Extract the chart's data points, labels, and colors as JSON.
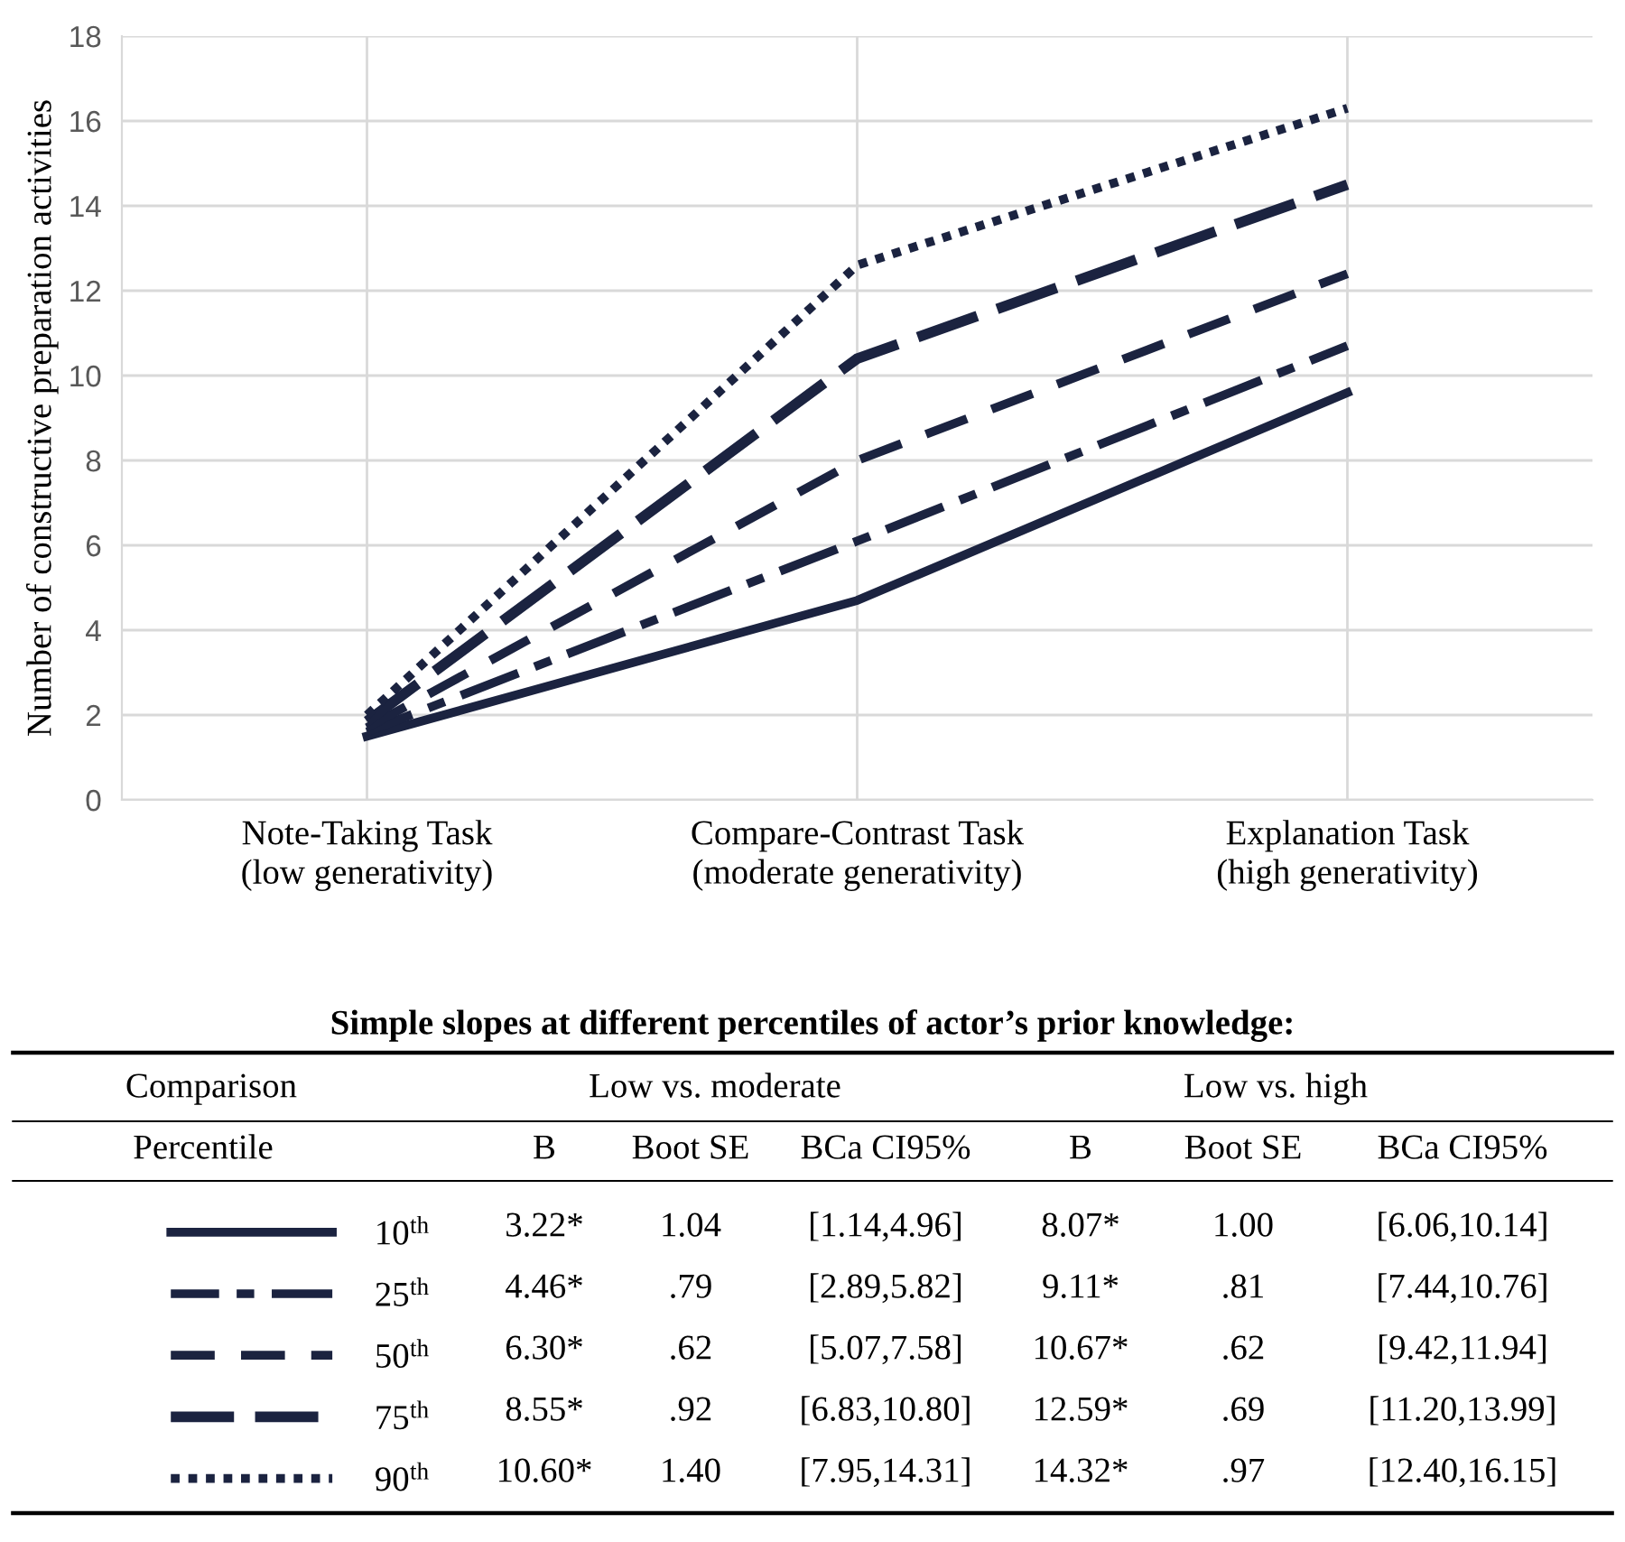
{
  "chart_data": {
    "type": "line",
    "ylabel": "Number of constructive preparation activities",
    "categories": [
      "Note-Taking Task\n(low generativity)",
      "Compare-Contrast Task\n(moderate generativity)",
      "Explanation Task\n(high generativity)"
    ],
    "ylim": [
      0,
      18
    ],
    "yticks": [
      0,
      2,
      4,
      6,
      8,
      10,
      12,
      14,
      16,
      18
    ],
    "grid": true,
    "legend": "bottom",
    "marker": "none",
    "series": [
      {
        "name": "10$^{th}$",
        "color": "#1b2340",
        "line_style": "solid",
        "values": [
          1.5,
          4.7,
          9.6
        ]
      },
      {
        "name": "25$^{th}$",
        "color": "#1b2340",
        "line_style": "dashdot",
        "values": [
          1.6,
          6.1,
          10.7
        ]
      },
      {
        "name": "50$^{th}$",
        "color": "#1b2340",
        "line_style": "dashed",
        "values": [
          1.7,
          8.0,
          12.4
        ]
      },
      {
        "name": "75$^{th}$",
        "color": "#1b2340",
        "line_style": "longdashed",
        "values": [
          1.85,
          10.4,
          14.5
        ]
      },
      {
        "name": "90$^{th}$",
        "color": "#1b2340",
        "line_style": "dotted",
        "values": [
          2.0,
          12.6,
          16.3
        ]
      }
    ],
    "annotations": [
      "Simple slopes at different percentiles of actor’s prior knowledge:",
      "Comparison",
      "Low vs. moderate",
      "Low vs. high",
      "Percentile",
      "B",
      "Boot SE",
      "BCa CI95%",
      "B",
      "Boot SE",
      "BCa CI95%",
      "3.22*",
      "1.04",
      "[1.14,4.96]",
      "8.07*",
      "1.00",
      "[6.06,10.14]",
      "4.46*",
      ".79",
      "[2.89,5.82]",
      "9.11*",
      ".81",
      "[7.44,10.76]",
      "6.30*",
      ".62",
      "[5.07,7.58]",
      "10.67*",
      ".62",
      "[9.42,11.94]",
      "8.55*",
      ".92",
      "[6.83,10.80]",
      "12.59*",
      ".69",
      "[11.20,13.99]",
      "10.60*",
      "1.40",
      "[7.95,14.31]",
      "14.32*",
      ".97",
      "[12.40,16.15]"
    ]
  }
}
